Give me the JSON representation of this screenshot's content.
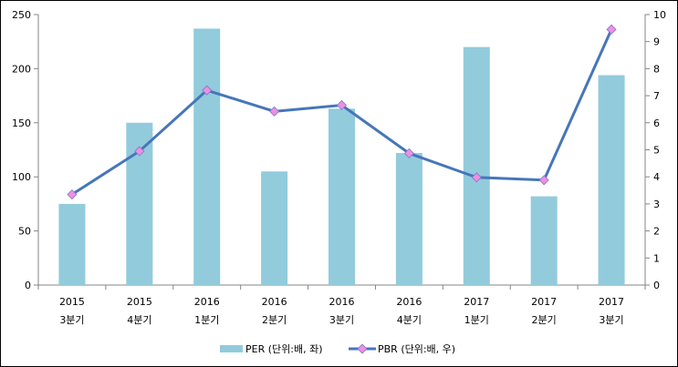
{
  "chart_data": {
    "type": "bar",
    "categories": [
      [
        "2015",
        "3분기"
      ],
      [
        "2015",
        "4분기"
      ],
      [
        "2016",
        "1분기"
      ],
      [
        "2016",
        "2분기"
      ],
      [
        "2016",
        "3분기"
      ],
      [
        "2016",
        "4분기"
      ],
      [
        "2017",
        "1분기"
      ],
      [
        "2017",
        "2분기"
      ],
      [
        "2017",
        "3분기"
      ]
    ],
    "series": [
      {
        "name": "PER (단위:배, 좌)",
        "type": "bar",
        "axis": "left",
        "color": "#92CBDC",
        "values": [
          75,
          150,
          237,
          105,
          163,
          122,
          220,
          82,
          194
        ]
      },
      {
        "name": "PBR (단위:배, 우)",
        "type": "line",
        "axis": "right",
        "color": "#4676B9",
        "marker_color": "#F08EE0",
        "values": [
          3.35,
          4.95,
          7.2,
          6.42,
          6.65,
          4.87,
          3.98,
          3.88,
          9.45
        ]
      }
    ],
    "y_left": {
      "min": 0,
      "max": 250,
      "ticks": [
        0,
        50,
        100,
        150,
        200,
        250
      ]
    },
    "y_right": {
      "min": 0,
      "max": 10,
      "ticks": [
        0,
        1,
        2,
        3,
        4,
        5,
        6,
        7,
        8,
        9,
        10
      ]
    },
    "grid": false,
    "legend_position": "bottom",
    "title": ""
  }
}
